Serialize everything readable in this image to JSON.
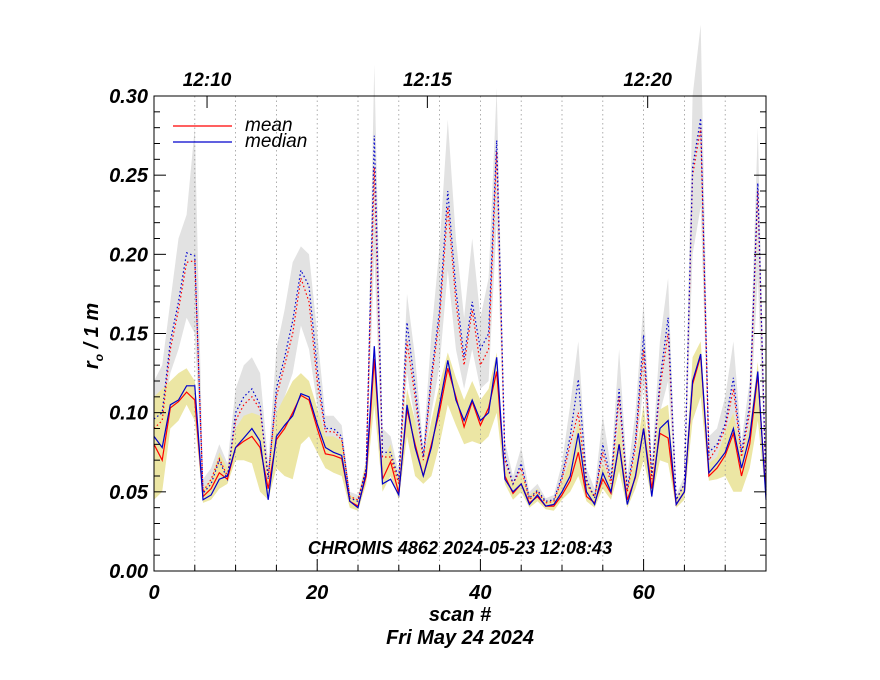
{
  "chart_data": {
    "type": "line",
    "title": "CHROMIS 4862 2024-05-23 12:08:43",
    "xlabel": "scan #",
    "date_label": "Fri May 24 2024",
    "ylabel": "r₀ / 1 m",
    "xlim": [
      0,
      75
    ],
    "ylim": [
      0.0,
      0.3
    ],
    "x_ticks": [
      0,
      20,
      40,
      60
    ],
    "x_tick_labels": [
      "0",
      "20",
      "40",
      "60"
    ],
    "y_ticks": [
      0.0,
      0.05,
      0.1,
      0.15,
      0.2,
      0.25,
      0.3
    ],
    "y_tick_labels": [
      "0.00",
      "0.05",
      "0.10",
      "0.15",
      "0.20",
      "0.25",
      "0.30"
    ],
    "time_markers": [
      {
        "label": "12:10",
        "x": 6.5
      },
      {
        "label": "12:15",
        "x": 33.5
      },
      {
        "label": "12:20",
        "x": 60.5
      }
    ],
    "vertical_gridlines_x": [
      5,
      10,
      15,
      20,
      25,
      30,
      35,
      40,
      45,
      50,
      55,
      60,
      65,
      70
    ],
    "legend": [
      {
        "name": "mean",
        "color": "#ff0000"
      },
      {
        "name": "median",
        "color": "#0000cc"
      }
    ],
    "colors": {
      "mean": "#ff0000",
      "median": "#0000cc",
      "lower_band": "#ece6a4",
      "upper_band": "#e2e2e2"
    },
    "x": [
      0,
      1,
      2,
      3,
      4,
      5,
      6,
      7,
      8,
      9,
      10,
      11,
      12,
      13,
      14,
      15,
      16,
      17,
      18,
      19,
      20,
      21,
      22,
      23,
      24,
      25,
      26,
      27,
      28,
      29,
      30,
      31,
      32,
      33,
      34,
      35,
      36,
      37,
      38,
      39,
      40,
      41,
      42,
      43,
      44,
      45,
      46,
      47,
      48,
      49,
      50,
      51,
      52,
      53,
      54,
      55,
      56,
      57,
      58,
      59,
      60,
      61,
      62,
      63,
      64,
      65,
      66,
      67,
      68,
      69,
      70,
      71,
      72,
      73,
      74,
      75
    ],
    "series": [
      {
        "name": "mean",
        "style": "solid",
        "values": [
          0.08,
          0.07,
          0.103,
          0.107,
          0.113,
          0.108,
          0.047,
          0.052,
          0.062,
          0.058,
          0.078,
          0.082,
          0.085,
          0.078,
          0.052,
          0.083,
          0.09,
          0.1,
          0.111,
          0.108,
          0.09,
          0.074,
          0.073,
          0.071,
          0.044,
          0.041,
          0.06,
          0.134,
          0.058,
          0.069,
          0.049,
          0.102,
          0.08,
          0.06,
          0.08,
          0.101,
          0.128,
          0.11,
          0.091,
          0.107,
          0.092,
          0.103,
          0.126,
          0.06,
          0.049,
          0.055,
          0.043,
          0.047,
          0.041,
          0.041,
          0.048,
          0.057,
          0.075,
          0.047,
          0.043,
          0.058,
          0.049,
          0.08,
          0.045,
          0.059,
          0.09,
          0.052,
          0.087,
          0.084,
          0.042,
          0.05,
          0.118,
          0.136,
          0.06,
          0.065,
          0.073,
          0.087,
          0.06,
          0.08,
          0.124,
          0.048
        ]
      },
      {
        "name": "median",
        "style": "solid",
        "values": [
          0.085,
          0.078,
          0.105,
          0.108,
          0.117,
          0.117,
          0.045,
          0.048,
          0.058,
          0.06,
          0.078,
          0.084,
          0.09,
          0.082,
          0.045,
          0.085,
          0.092,
          0.098,
          0.112,
          0.11,
          0.093,
          0.078,
          0.075,
          0.073,
          0.044,
          0.04,
          0.062,
          0.142,
          0.055,
          0.058,
          0.048,
          0.105,
          0.078,
          0.06,
          0.078,
          0.105,
          0.133,
          0.108,
          0.095,
          0.108,
          0.095,
          0.1,
          0.135,
          0.058,
          0.05,
          0.055,
          0.042,
          0.048,
          0.041,
          0.042,
          0.05,
          0.06,
          0.087,
          0.05,
          0.042,
          0.062,
          0.05,
          0.08,
          0.042,
          0.06,
          0.09,
          0.047,
          0.09,
          0.095,
          0.042,
          0.05,
          0.12,
          0.137,
          0.062,
          0.068,
          0.075,
          0.09,
          0.065,
          0.085,
          0.126,
          0.045
        ]
      },
      {
        "name": "mean-upper",
        "style": "dotted",
        "color": "#ff0000",
        "values": [
          0.09,
          0.095,
          0.14,
          0.165,
          0.195,
          0.196,
          0.05,
          0.058,
          0.071,
          0.06,
          0.095,
          0.105,
          0.11,
          0.102,
          0.06,
          0.11,
          0.13,
          0.15,
          0.185,
          0.17,
          0.12,
          0.088,
          0.088,
          0.083,
          0.047,
          0.045,
          0.065,
          0.255,
          0.072,
          0.072,
          0.055,
          0.145,
          0.11,
          0.07,
          0.12,
          0.16,
          0.23,
          0.17,
          0.13,
          0.165,
          0.13,
          0.14,
          0.265,
          0.07,
          0.055,
          0.065,
          0.045,
          0.05,
          0.043,
          0.044,
          0.058,
          0.08,
          0.1,
          0.055,
          0.047,
          0.075,
          0.055,
          0.11,
          0.05,
          0.078,
          0.14,
          0.058,
          0.115,
          0.15,
          0.045,
          0.055,
          0.25,
          0.28,
          0.07,
          0.078,
          0.09,
          0.115,
          0.072,
          0.1,
          0.24,
          0.052
        ]
      },
      {
        "name": "median-upper",
        "style": "dotted",
        "color": "#0000cc",
        "values": [
          0.096,
          0.1,
          0.145,
          0.17,
          0.201,
          0.199,
          0.049,
          0.055,
          0.07,
          0.058,
          0.1,
          0.11,
          0.115,
          0.105,
          0.058,
          0.115,
          0.135,
          0.158,
          0.19,
          0.18,
          0.128,
          0.09,
          0.09,
          0.085,
          0.046,
          0.044,
          0.065,
          0.275,
          0.075,
          0.075,
          0.058,
          0.157,
          0.116,
          0.072,
          0.124,
          0.165,
          0.24,
          0.178,
          0.135,
          0.17,
          0.14,
          0.15,
          0.272,
          0.073,
          0.055,
          0.068,
          0.046,
          0.051,
          0.044,
          0.045,
          0.06,
          0.085,
          0.121,
          0.058,
          0.046,
          0.08,
          0.058,
          0.115,
          0.052,
          0.082,
          0.149,
          0.06,
          0.12,
          0.16,
          0.045,
          0.055,
          0.255,
          0.286,
          0.075,
          0.08,
          0.093,
          0.122,
          0.075,
          0.105,
          0.245,
          0.05
        ]
      }
    ],
    "bands": [
      {
        "name": "lower-band",
        "low": [
          0.045,
          0.05,
          0.09,
          0.095,
          0.105,
          0.095,
          0.043,
          0.045,
          0.052,
          0.055,
          0.07,
          0.07,
          0.068,
          0.05,
          0.045,
          0.065,
          0.06,
          0.058,
          0.08,
          0.085,
          0.075,
          0.065,
          0.062,
          0.06,
          0.04,
          0.038,
          0.055,
          0.105,
          0.05,
          0.06,
          0.045,
          0.085,
          0.06,
          0.055,
          0.06,
          0.08,
          0.105,
          0.092,
          0.08,
          0.082,
          0.08,
          0.085,
          0.1,
          0.055,
          0.045,
          0.05,
          0.04,
          0.044,
          0.039,
          0.038,
          0.045,
          0.05,
          0.06,
          0.044,
          0.04,
          0.052,
          0.045,
          0.063,
          0.04,
          0.052,
          0.07,
          0.046,
          0.07,
          0.068,
          0.04,
          0.045,
          0.095,
          0.11,
          0.057,
          0.058,
          0.06,
          0.05,
          0.05,
          0.065,
          0.095,
          0.045
        ],
        "high": [
          0.11,
          0.115,
          0.12,
          0.125,
          0.128,
          0.12,
          0.052,
          0.058,
          0.075,
          0.065,
          0.09,
          0.098,
          0.1,
          0.098,
          0.062,
          0.1,
          0.11,
          0.12,
          0.125,
          0.12,
          0.103,
          0.085,
          0.085,
          0.082,
          0.048,
          0.045,
          0.07,
          0.14,
          0.07,
          0.08,
          0.056,
          0.115,
          0.095,
          0.07,
          0.095,
          0.118,
          0.138,
          0.122,
          0.108,
          0.12,
          0.108,
          0.115,
          0.138,
          0.066,
          0.055,
          0.062,
          0.048,
          0.052,
          0.044,
          0.045,
          0.056,
          0.07,
          0.095,
          0.058,
          0.048,
          0.068,
          0.055,
          0.095,
          0.052,
          0.072,
          0.105,
          0.06,
          0.102,
          0.105,
          0.046,
          0.055,
          0.135,
          0.145,
          0.068,
          0.072,
          0.088,
          0.1,
          0.073,
          0.092,
          0.132,
          0.05
        ]
      },
      {
        "name": "upper-band",
        "low": [
          0.08,
          0.09,
          0.125,
          0.14,
          0.16,
          0.15,
          0.046,
          0.05,
          0.062,
          0.058,
          0.085,
          0.09,
          0.095,
          0.09,
          0.052,
          0.095,
          0.11,
          0.125,
          0.155,
          0.14,
          0.105,
          0.08,
          0.08,
          0.078,
          0.045,
          0.042,
          0.06,
          0.2,
          0.062,
          0.068,
          0.052,
          0.125,
          0.095,
          0.065,
          0.1,
          0.13,
          0.19,
          0.14,
          0.115,
          0.14,
          0.115,
          0.12,
          0.22,
          0.065,
          0.052,
          0.06,
          0.043,
          0.048,
          0.041,
          0.042,
          0.053,
          0.07,
          0.09,
          0.052,
          0.044,
          0.068,
          0.052,
          0.095,
          0.047,
          0.07,
          0.118,
          0.053,
          0.1,
          0.12,
          0.043,
          0.052,
          0.2,
          0.23,
          0.065,
          0.07,
          0.083,
          0.1,
          0.068,
          0.09,
          0.185,
          0.048
        ],
        "high": [
          0.12,
          0.13,
          0.17,
          0.21,
          0.225,
          0.28,
          0.058,
          0.065,
          0.08,
          0.068,
          0.115,
          0.13,
          0.135,
          0.125,
          0.068,
          0.14,
          0.165,
          0.195,
          0.205,
          0.2,
          0.15,
          0.098,
          0.098,
          0.092,
          0.05,
          0.048,
          0.07,
          0.32,
          0.09,
          0.085,
          0.062,
          0.175,
          0.135,
          0.078,
          0.15,
          0.205,
          0.285,
          0.21,
          0.16,
          0.21,
          0.16,
          0.185,
          0.305,
          0.082,
          0.06,
          0.078,
          0.05,
          0.055,
          0.046,
          0.048,
          0.068,
          0.105,
          0.145,
          0.065,
          0.052,
          0.098,
          0.065,
          0.14,
          0.06,
          0.1,
          0.17,
          0.068,
          0.145,
          0.185,
          0.048,
          0.06,
          0.3,
          0.345,
          0.085,
          0.09,
          0.11,
          0.145,
          0.082,
          0.12,
          0.28,
          0.055
        ]
      }
    ]
  }
}
